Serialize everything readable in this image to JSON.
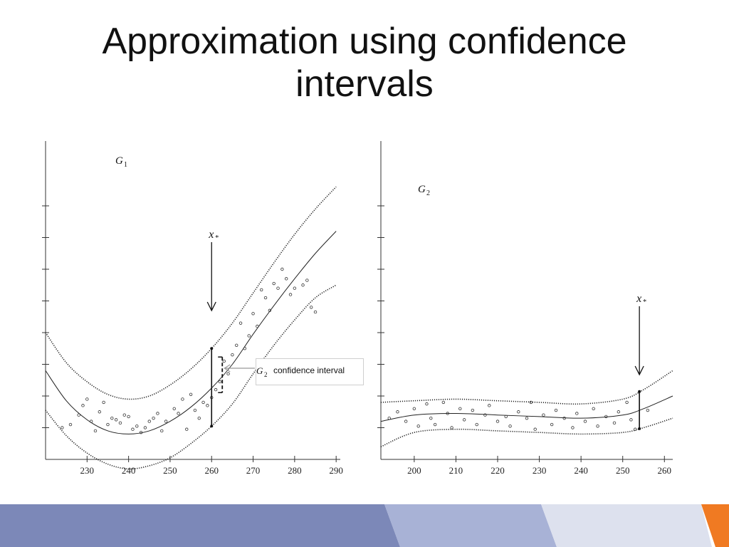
{
  "slide": {
    "title": "Approximation using confidence intervals"
  },
  "callout": {
    "graph_label": "G",
    "graph_sub": "2",
    "text": "confidence interval"
  },
  "colors": {
    "footer_dark": "#7c88b8",
    "footer_mid": "#a8b2d6",
    "footer_light": "#dde1ee",
    "footer_accent": "#f07a22"
  },
  "chart_data": [
    {
      "type": "line",
      "title": "",
      "graph_label": "G",
      "graph_sub": "1",
      "marker_label": "x",
      "marker_sub": "*",
      "marker_x": 260,
      "xlim": [
        220,
        291
      ],
      "ylim": [
        0,
        10
      ],
      "xticks": [
        230,
        240,
        250,
        260,
        270,
        280,
        290
      ],
      "yticks": [
        1,
        2,
        3,
        4,
        5,
        6,
        7,
        8
      ],
      "series": [
        {
          "style": "dotted",
          "x": [
            220,
            225,
            230,
            235,
            240,
            245,
            250,
            255,
            260,
            265,
            270,
            275,
            280,
            285,
            290
          ],
          "y": [
            4.0,
            3.05,
            2.45,
            2.05,
            1.9,
            2.0,
            2.35,
            2.85,
            3.5,
            4.3,
            5.25,
            6.2,
            7.1,
            7.9,
            8.6
          ]
        },
        {
          "style": "solid",
          "x": [
            220,
            225,
            230,
            235,
            240,
            245,
            250,
            255,
            260,
            265,
            270,
            275,
            280,
            285,
            290
          ],
          "y": [
            2.8,
            1.85,
            1.25,
            0.9,
            0.8,
            0.9,
            1.2,
            1.65,
            2.25,
            3.0,
            3.95,
            4.85,
            5.7,
            6.5,
            7.2
          ]
        },
        {
          "style": "dotted",
          "x": [
            220,
            225,
            230,
            235,
            240,
            245,
            250,
            255,
            260,
            265,
            270,
            275,
            280,
            285,
            290
          ],
          "y": [
            1.55,
            0.75,
            0.2,
            -0.15,
            -0.3,
            -0.2,
            0.05,
            0.5,
            1.05,
            1.75,
            2.7,
            3.6,
            4.4,
            5.1,
            5.5
          ]
        }
      ],
      "points": [
        {
          "x": 224,
          "y": 1.0
        },
        {
          "x": 226,
          "y": 1.1
        },
        {
          "x": 228,
          "y": 1.4
        },
        {
          "x": 229,
          "y": 1.7
        },
        {
          "x": 230,
          "y": 1.9
        },
        {
          "x": 231,
          "y": 1.2
        },
        {
          "x": 232,
          "y": 0.9
        },
        {
          "x": 233,
          "y": 1.5
        },
        {
          "x": 234,
          "y": 1.8
        },
        {
          "x": 235,
          "y": 1.1
        },
        {
          "x": 236,
          "y": 1.3
        },
        {
          "x": 237,
          "y": 1.25
        },
        {
          "x": 238,
          "y": 1.15
        },
        {
          "x": 239,
          "y": 1.4
        },
        {
          "x": 240,
          "y": 1.35
        },
        {
          "x": 241,
          "y": 0.95
        },
        {
          "x": 242,
          "y": 1.05
        },
        {
          "x": 243,
          "y": 0.85
        },
        {
          "x": 244,
          "y": 1.0
        },
        {
          "x": 245,
          "y": 1.2
        },
        {
          "x": 246,
          "y": 1.3
        },
        {
          "x": 247,
          "y": 1.45
        },
        {
          "x": 248,
          "y": 0.9
        },
        {
          "x": 249,
          "y": 1.2
        },
        {
          "x": 251,
          "y": 1.6
        },
        {
          "x": 252,
          "y": 1.45
        },
        {
          "x": 253,
          "y": 1.9
        },
        {
          "x": 254,
          "y": 0.95
        },
        {
          "x": 255,
          "y": 2.05
        },
        {
          "x": 256,
          "y": 1.55
        },
        {
          "x": 257,
          "y": 1.3
        },
        {
          "x": 258,
          "y": 1.8
        },
        {
          "x": 259,
          "y": 1.7
        },
        {
          "x": 260,
          "y": 1.95
        },
        {
          "x": 261,
          "y": 2.2
        },
        {
          "x": 262,
          "y": 2.45
        },
        {
          "x": 263,
          "y": 3.1
        },
        {
          "x": 264,
          "y": 2.7
        },
        {
          "x": 265,
          "y": 3.3
        },
        {
          "x": 266,
          "y": 3.6
        },
        {
          "x": 267,
          "y": 4.3
        },
        {
          "x": 268,
          "y": 3.5
        },
        {
          "x": 269,
          "y": 3.9
        },
        {
          "x": 270,
          "y": 4.6
        },
        {
          "x": 271,
          "y": 4.2
        },
        {
          "x": 272,
          "y": 5.35
        },
        {
          "x": 273,
          "y": 5.1
        },
        {
          "x": 274,
          "y": 4.7
        },
        {
          "x": 275,
          "y": 5.55
        },
        {
          "x": 276,
          "y": 5.4
        },
        {
          "x": 277,
          "y": 6.0
        },
        {
          "x": 278,
          "y": 5.7
        },
        {
          "x": 279,
          "y": 5.2
        },
        {
          "x": 280,
          "y": 5.4
        },
        {
          "x": 282,
          "y": 5.5
        },
        {
          "x": 283,
          "y": 5.65
        },
        {
          "x": 284,
          "y": 4.8
        },
        {
          "x": 285,
          "y": 4.65
        }
      ]
    },
    {
      "type": "line",
      "title": "",
      "graph_label": "G",
      "graph_sub": "2",
      "marker_label": "x",
      "marker_sub": "*",
      "marker_x": 254,
      "xlim": [
        192,
        262
      ],
      "ylim": [
        0,
        10
      ],
      "xticks": [
        200,
        210,
        220,
        230,
        240,
        250,
        260
      ],
      "yticks": [
        1,
        2,
        3,
        4,
        5,
        6,
        7,
        8
      ],
      "series": [
        {
          "style": "dotted",
          "x": [
            192,
            200,
            210,
            220,
            230,
            240,
            250,
            255,
            262
          ],
          "y": [
            1.8,
            1.85,
            1.9,
            1.85,
            1.8,
            1.75,
            1.9,
            2.2,
            2.8
          ]
        },
        {
          "style": "solid",
          "x": [
            192,
            200,
            210,
            220,
            230,
            240,
            250,
            255,
            262
          ],
          "y": [
            1.2,
            1.4,
            1.45,
            1.4,
            1.35,
            1.3,
            1.4,
            1.6,
            2.0
          ]
        },
        {
          "style": "dotted",
          "x": [
            192,
            200,
            210,
            220,
            230,
            240,
            250,
            255,
            262
          ],
          "y": [
            0.4,
            0.85,
            0.95,
            0.9,
            0.85,
            0.8,
            0.85,
            1.0,
            1.3
          ]
        }
      ],
      "points": [
        {
          "x": 194,
          "y": 1.3
        },
        {
          "x": 196,
          "y": 1.5
        },
        {
          "x": 198,
          "y": 1.2
        },
        {
          "x": 200,
          "y": 1.6
        },
        {
          "x": 201,
          "y": 1.05
        },
        {
          "x": 203,
          "y": 1.75
        },
        {
          "x": 204,
          "y": 1.3
        },
        {
          "x": 205,
          "y": 1.1
        },
        {
          "x": 207,
          "y": 1.8
        },
        {
          "x": 208,
          "y": 1.45
        },
        {
          "x": 209,
          "y": 1.0
        },
        {
          "x": 211,
          "y": 1.6
        },
        {
          "x": 212,
          "y": 1.25
        },
        {
          "x": 214,
          "y": 1.55
        },
        {
          "x": 215,
          "y": 1.1
        },
        {
          "x": 217,
          "y": 1.4
        },
        {
          "x": 218,
          "y": 1.7
        },
        {
          "x": 220,
          "y": 1.2
        },
        {
          "x": 222,
          "y": 1.35
        },
        {
          "x": 223,
          "y": 1.05
        },
        {
          "x": 225,
          "y": 1.5
        },
        {
          "x": 227,
          "y": 1.3
        },
        {
          "x": 228,
          "y": 1.8
        },
        {
          "x": 229,
          "y": 0.95
        },
        {
          "x": 231,
          "y": 1.4
        },
        {
          "x": 233,
          "y": 1.1
        },
        {
          "x": 234,
          "y": 1.55
        },
        {
          "x": 236,
          "y": 1.3
        },
        {
          "x": 238,
          "y": 1.0
        },
        {
          "x": 239,
          "y": 1.45
        },
        {
          "x": 241,
          "y": 1.2
        },
        {
          "x": 243,
          "y": 1.6
        },
        {
          "x": 244,
          "y": 1.05
        },
        {
          "x": 246,
          "y": 1.35
        },
        {
          "x": 248,
          "y": 1.15
        },
        {
          "x": 249,
          "y": 1.5
        },
        {
          "x": 251,
          "y": 1.8
        },
        {
          "x": 252,
          "y": 1.25
        },
        {
          "x": 253,
          "y": 0.95
        },
        {
          "x": 256,
          "y": 1.55
        }
      ]
    }
  ]
}
